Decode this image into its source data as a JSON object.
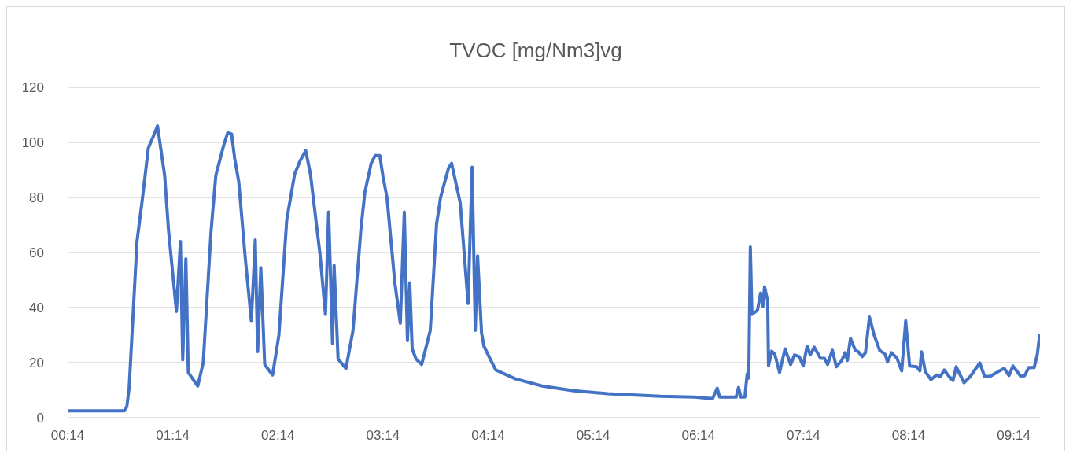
{
  "chart_data": {
    "type": "line",
    "title": "TVOC [mg/Nm3]vg",
    "x": [
      0.2333,
      0.773,
      0.796,
      0.818,
      0.893,
      0.946,
      1.001,
      1.046,
      1.088,
      1.156,
      1.193,
      1.268,
      1.306,
      1.328,
      1.358,
      1.381,
      1.471,
      1.523,
      1.598,
      1.643,
      1.718,
      1.756,
      1.793,
      1.823,
      1.861,
      1.921,
      1.981,
      2.018,
      2.041,
      2.071,
      2.108,
      2.183,
      2.243,
      2.318,
      2.393,
      2.446,
      2.498,
      2.543,
      2.633,
      2.686,
      2.716,
      2.753,
      2.768,
      2.806,
      2.881,
      2.948,
      3.023,
      3.061,
      3.121,
      3.158,
      3.203,
      3.233,
      3.271,
      3.346,
      3.398,
      3.436,
      3.466,
      3.488,
      3.511,
      3.548,
      3.601,
      3.683,
      3.743,
      3.781,
      3.856,
      3.886,
      3.968,
      4.043,
      4.081,
      4.111,
      4.133,
      4.171,
      4.193,
      4.268,
      4.306,
      4.493,
      4.748,
      5.048,
      5.371,
      5.873,
      6.196,
      6.368,
      6.413,
      6.436,
      6.593,
      6.616,
      6.638,
      6.676,
      6.698,
      6.713,
      6.728,
      6.743,
      6.796,
      6.826,
      6.848,
      6.863,
      6.893,
      6.901,
      6.931,
      6.961,
      7.006,
      7.058,
      7.111,
      7.148,
      7.193,
      7.231,
      7.268,
      7.298,
      7.336,
      7.396,
      7.433,
      7.463,
      7.508,
      7.546,
      7.598,
      7.628,
      7.651,
      7.681,
      7.726,
      7.756,
      7.793,
      7.823,
      7.861,
      7.906,
      7.958,
      8.011,
      8.033,
      8.071,
      8.123,
      8.168,
      8.206,
      8.243,
      8.311,
      8.341,
      8.356,
      8.393,
      8.446,
      8.498,
      8.536,
      8.573,
      8.618,
      8.656,
      8.686,
      8.761,
      8.821,
      8.911,
      8.956,
      9.008,
      9.098,
      9.143,
      9.188,
      9.226,
      9.301,
      9.338,
      9.376,
      9.428,
      9.458,
      9.481
    ],
    "series": [
      {
        "color": "#4472c4",
        "values": [
          2.5,
          2.5,
          4,
          10.7,
          64,
          80,
          98,
          102,
          106,
          88,
          68,
          38.6,
          64,
          21,
          57.7,
          16.4,
          11.5,
          20,
          68,
          88,
          99,
          103.5,
          103,
          94,
          85.7,
          58.8,
          35,
          64.6,
          24,
          54.5,
          19.3,
          15.5,
          30,
          72,
          88.5,
          93.4,
          97,
          88.5,
          59.7,
          37.5,
          74.7,
          27,
          55.4,
          21.3,
          17.9,
          31.7,
          68.4,
          81.9,
          92.4,
          95.2,
          95.2,
          87.6,
          80,
          49,
          34.3,
          74.7,
          28,
          49,
          25,
          21.3,
          19.3,
          31.7,
          70.4,
          80,
          90.6,
          92.4,
          78,
          41.5,
          91,
          31.7,
          58.8,
          30.8,
          26,
          20.2,
          17.3,
          14.1,
          11.5,
          9.8,
          8.7,
          7.8,
          7.5,
          6.9,
          10.7,
          7.5,
          7.5,
          11,
          7.5,
          7.5,
          15.9,
          14.4,
          62,
          37.5,
          39,
          45.3,
          40.4,
          47.6,
          42.4,
          18.8,
          24.2,
          23,
          16.4,
          25,
          19.3,
          22.8,
          22.2,
          18.8,
          26,
          22.8,
          25.6,
          21.6,
          21.6,
          19.3,
          24.5,
          18.5,
          20.8,
          23.6,
          20.8,
          28.8,
          24.5,
          23.9,
          22.2,
          23.6,
          36.6,
          30,
          24.5,
          23,
          20.2,
          23.6,
          21.6,
          17,
          35.2,
          18.8,
          18.5,
          17,
          23.9,
          16.7,
          13.8,
          15.5,
          15,
          17.3,
          15,
          13.5,
          18.5,
          12.7,
          15,
          19.9,
          15,
          15,
          17,
          17.9,
          15.3,
          18.8,
          15,
          15.3,
          18.2,
          18.2,
          23,
          30.3
        ]
      }
    ],
    "xlim": [
      0.2333,
      9.4833
    ],
    "xticks": [
      {
        "value": 0.2333,
        "label": "00:14"
      },
      {
        "value": 1.2333,
        "label": "01:14"
      },
      {
        "value": 2.2333,
        "label": "02:14"
      },
      {
        "value": 3.2333,
        "label": "03:14"
      },
      {
        "value": 4.2333,
        "label": "04:14"
      },
      {
        "value": 5.2333,
        "label": "05:14"
      },
      {
        "value": 6.2333,
        "label": "06:14"
      },
      {
        "value": 7.2333,
        "label": "07:14"
      },
      {
        "value": 8.2333,
        "label": "08:14"
      },
      {
        "value": 9.2333,
        "label": "09:14"
      }
    ],
    "ylim": [
      0,
      120
    ],
    "yticks": [
      0,
      20,
      40,
      60,
      80,
      100,
      120
    ],
    "grid": "y",
    "marker": "none",
    "line_style": "solid"
  }
}
